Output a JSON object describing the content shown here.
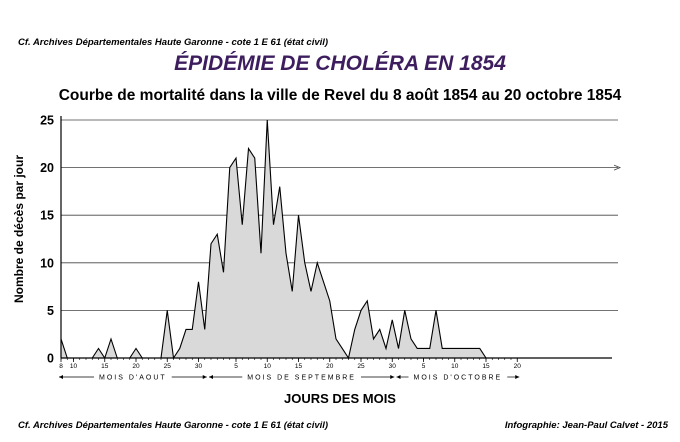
{
  "header": {
    "source_top": "Cf. Archives Départementales Haute Garonne - cote  1 E 61 (état civil)"
  },
  "footer": {
    "source_bottom": "Cf. Archives Départementales Haute Garonne - cote  1 E 61 (état civil)",
    "credit": "Infographie: Jean-Paul Calvet - 2015"
  },
  "colors": {
    "title": "#3d1d5e",
    "fill": "#d9d9d9",
    "line": "#000000",
    "grid": "#444444"
  },
  "chart_data": {
    "type": "area",
    "title": "ÉPIDÉMIE DE CHOLÉRA EN 1854",
    "subtitle": "Courbe de mortalité dans la ville de Revel du 8 août 1854 au 20 octobre 1854",
    "xlabel": "JOURS DES MOIS",
    "ylabel": "Nombre de décès par jour",
    "ylim": [
      0,
      25
    ],
    "yticks": [
      0,
      5,
      10,
      15,
      20,
      25
    ],
    "grid": "horizontal",
    "x_start": "8 août 1854",
    "x_end": "20 octobre 1854",
    "xtick_labels": [
      {
        "day": 0,
        "label": "8"
      },
      {
        "day": 2,
        "label": "10"
      },
      {
        "day": 7,
        "label": "15"
      },
      {
        "day": 12,
        "label": "20"
      },
      {
        "day": 17,
        "label": "25"
      },
      {
        "day": 22,
        "label": "30"
      },
      {
        "day": 28,
        "label": "5"
      },
      {
        "day": 33,
        "label": "10"
      },
      {
        "day": 38,
        "label": "15"
      },
      {
        "day": 43,
        "label": "20"
      },
      {
        "day": 48,
        "label": "25"
      },
      {
        "day": 53,
        "label": "30"
      },
      {
        "day": 58,
        "label": "5"
      },
      {
        "day": 63,
        "label": "10"
      },
      {
        "day": 68,
        "label": "15"
      },
      {
        "day": 73,
        "label": "20"
      }
    ],
    "months": [
      {
        "label": "MOIS D'AOUT",
        "from": 0,
        "to": 23
      },
      {
        "label": "MOIS DE SEPTEMBRE",
        "from": 24,
        "to": 53
      },
      {
        "label": "MOIS D'OCTOBRE",
        "from": 54,
        "to": 73
      }
    ],
    "series": [
      {
        "values": [
          2,
          0,
          0,
          0,
          0,
          0,
          1,
          0,
          2,
          0,
          0,
          0,
          1,
          0,
          0,
          0,
          0,
          5,
          0,
          1,
          3,
          3,
          8,
          3,
          12,
          13,
          9,
          20,
          21,
          14,
          22,
          21,
          11,
          25,
          14,
          18,
          11,
          7,
          15,
          10,
          7,
          10,
          8,
          6,
          2,
          1,
          0,
          3,
          5,
          6,
          2,
          3,
          1,
          4,
          1,
          5,
          2,
          1,
          1,
          1,
          5,
          1,
          1,
          1,
          1,
          1,
          1,
          1,
          0,
          0,
          0,
          0,
          0,
          0
        ]
      }
    ]
  }
}
